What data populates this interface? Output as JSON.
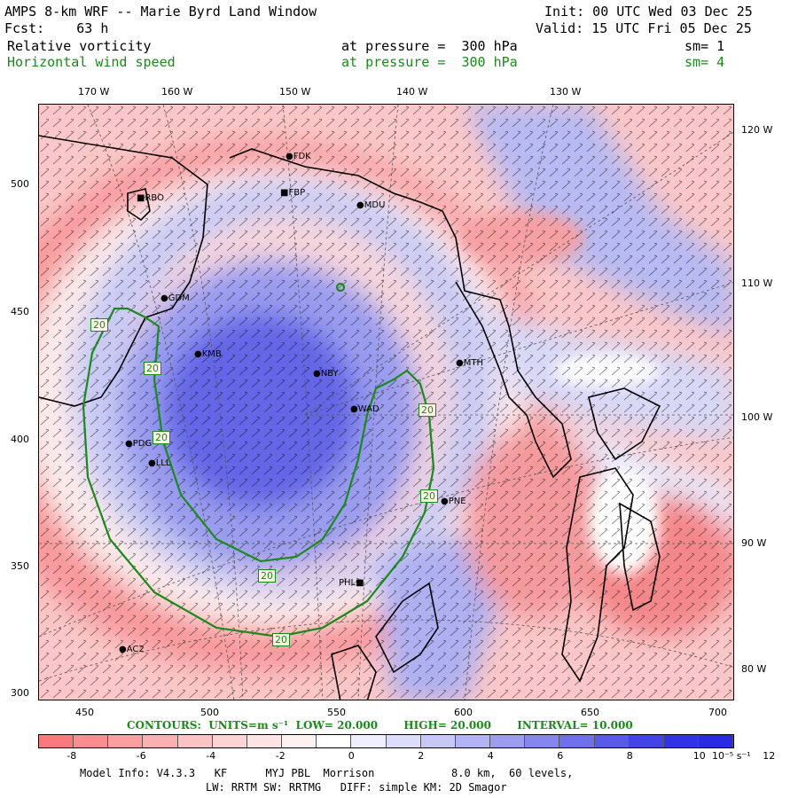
{
  "header": {
    "title": "AMPS 8-km WRF -- Marie Byrd Land Window",
    "init": "Init: 00 UTC Wed 03 Dec 25",
    "fcst": "Fcst:    63 h",
    "valid": "Valid: 15 UTC Fri 05 Dec 25",
    "field1": "Relative vorticity",
    "field1_level": "at pressure =  300 hPa",
    "field1_sm": "sm= 1",
    "field2": "Horizontal wind speed",
    "field2_level": "at pressure =  300 hPa",
    "field2_sm": "sm= 4"
  },
  "axes": {
    "top": [
      "170 W",
      "160 W",
      "150 W",
      "140 W",
      "130 W"
    ],
    "right": [
      "120 W",
      "110 W",
      "100 W",
      "90 W",
      "80 W"
    ],
    "left": [
      "500",
      "450",
      "400",
      "350",
      "300"
    ],
    "bottom": [
      "450",
      "500",
      "550",
      "600",
      "650",
      "700"
    ]
  },
  "stations": [
    "FDK",
    "FBP",
    "MDU",
    "RBO",
    "GDM",
    "KMB",
    "NBY",
    "MTH",
    "WAD",
    "PDG",
    "LLL",
    "PNE",
    "PHL",
    "AC2"
  ],
  "contour_labels": [
    "20",
    "20",
    "20",
    "20",
    "20",
    "20",
    "20"
  ],
  "contours_info": "CONTOURS:  UNITS=m s⁻¹  LOW= 20.000       HIGH= 20.000       INTERVAL= 10.000",
  "colorbar": {
    "ticks": [
      "-8",
      "-6",
      "-4",
      "-2",
      "0",
      "2",
      "4",
      "6",
      "8",
      "10",
      "12"
    ],
    "units": "10⁻⁵ s⁻¹",
    "colors": [
      "#f7797b",
      "#f98d8f",
      "#fb9fa0",
      "#fbb1b2",
      "#fcc3c4",
      "#fdd3d4",
      "#fde3e3",
      "#fef1f1",
      "#ffffff",
      "#eeeeff",
      "#dcdcfb",
      "#c8c8f8",
      "#b2b2f5",
      "#9c9cf1",
      "#8686ee",
      "#7070ea",
      "#5a5ae8",
      "#4444e6",
      "#3232e4",
      "#2a2ae2"
    ]
  },
  "footer": {
    "line1": "Model Info: V4.3.3   KF      MYJ PBL  Morrison            8.0 km,  60 levels,",
    "line2": "LW: RRTM SW: RRTMG   DIFF: simple KM: 2D Smagor"
  }
}
